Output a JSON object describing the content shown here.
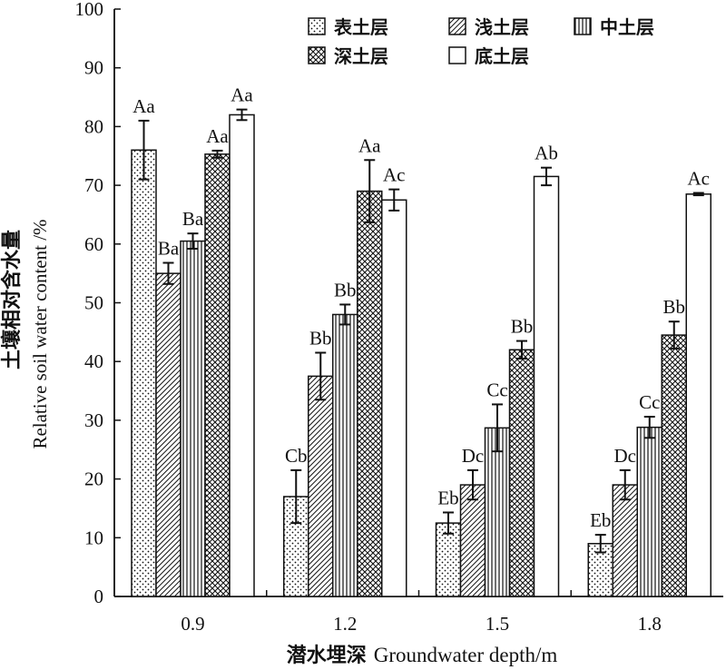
{
  "chart_data": {
    "type": "bar",
    "xlabel_cn": "潜水埋深",
    "xlabel_en": "Groundwater depth/m",
    "ylabel_cn": "土壤相对含水量",
    "ylabel_en": "Relative soil water content /%",
    "ylim": [
      0,
      100
    ],
    "yticks": [
      0,
      10,
      20,
      30,
      40,
      50,
      60,
      70,
      80,
      90,
      100
    ],
    "categories": [
      "0.9",
      "1.2",
      "1.5",
      "1.8"
    ],
    "legend_position": "top-right",
    "series": [
      {
        "name": "表土层",
        "pattern": "dots",
        "values": [
          76,
          17,
          12.5,
          9
        ],
        "errors": [
          5,
          4.5,
          1.8,
          1.5
        ],
        "labels": [
          "Aa",
          "Cb",
          "Eb",
          "Eb"
        ]
      },
      {
        "name": "浅土层",
        "pattern": "diagonal",
        "values": [
          55,
          37.5,
          19,
          19
        ],
        "errors": [
          1.8,
          4,
          2.5,
          2.5
        ],
        "labels": [
          "Ba",
          "Bb",
          "Dc",
          "Dc"
        ]
      },
      {
        "name": "中土层",
        "pattern": "vertical",
        "values": [
          60.5,
          48,
          28.7,
          28.8
        ],
        "errors": [
          1.3,
          1.7,
          4,
          1.8
        ],
        "labels": [
          "Ba",
          "Bb",
          "Cc",
          "Cc"
        ]
      },
      {
        "name": "深土层",
        "pattern": "crosshatch",
        "values": [
          75.3,
          69,
          42,
          44.5
        ],
        "errors": [
          0.6,
          5.3,
          1.5,
          2.3
        ],
        "labels": [
          "Aa",
          "Aa",
          "Bb",
          "Bb"
        ]
      },
      {
        "name": "底土层",
        "pattern": "none",
        "values": [
          82,
          67.5,
          71.5,
          68.5
        ],
        "errors": [
          0.9,
          1.8,
          1.5,
          0.2
        ],
        "labels": [
          "Aa",
          "Ac",
          "Ab",
          "Ac"
        ]
      }
    ]
  }
}
